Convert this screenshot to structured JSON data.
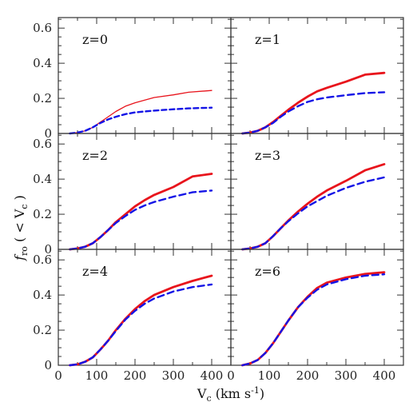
{
  "chart_data": {
    "type": "line",
    "grid": false,
    "layout": "3x2 panels, shared axes",
    "xlabel": "V_c (km s^-1)",
    "xlabel_parts": {
      "main": "V",
      "sub": "c",
      "rest": " (km s",
      "sup": "-1",
      "close": ")"
    },
    "ylabel_parts": {
      "main": "f",
      "sub": "ro",
      "mid": " ( < V",
      "sub2": "c",
      "close": " )"
    },
    "xlim": [
      0,
      450
    ],
    "ylim": [
      0,
      0.66
    ],
    "xticks": [
      0,
      100,
      200,
      300,
      400
    ],
    "yticks": [
      0,
      0.2,
      0.4,
      0.6
    ],
    "ytick_labels": [
      "0",
      "0.2",
      "0.4",
      "0.6"
    ],
    "colors": {
      "solid": "#e8141c",
      "dashed": "#1414e6",
      "frame": "#333333"
    },
    "panels": [
      {
        "label": "z=0",
        "series": [
          {
            "style": "solid-thin",
            "x": [
              30,
              50,
              70,
              90,
              110,
              130,
              150,
              175,
              200,
              250,
              300,
              340,
              400
            ],
            "y": [
              0,
              0.005,
              0.015,
              0.035,
              0.065,
              0.095,
              0.125,
              0.155,
              0.175,
              0.205,
              0.22,
              0.235,
              0.245
            ]
          },
          {
            "style": "dashed",
            "x": [
              30,
              50,
              70,
              90,
              110,
              130,
              150,
              175,
              200,
              250,
              300,
              340,
              400
            ],
            "y": [
              0,
              0.005,
              0.015,
              0.035,
              0.06,
              0.08,
              0.095,
              0.11,
              0.12,
              0.13,
              0.138,
              0.143,
              0.147
            ]
          }
        ]
      },
      {
        "label": "z=1",
        "series": [
          {
            "style": "solid",
            "x": [
              30,
              50,
              70,
              90,
              110,
              130,
              150,
              175,
              200,
              225,
              250,
              300,
              350,
              400
            ],
            "y": [
              0,
              0.005,
              0.015,
              0.035,
              0.065,
              0.1,
              0.135,
              0.175,
              0.21,
              0.24,
              0.26,
              0.295,
              0.335,
              0.345
            ]
          },
          {
            "style": "dashed",
            "x": [
              30,
              50,
              70,
              90,
              110,
              130,
              150,
              175,
              200,
              225,
              250,
              300,
              350,
              400
            ],
            "y": [
              0,
              0.005,
              0.015,
              0.035,
              0.06,
              0.095,
              0.125,
              0.155,
              0.18,
              0.195,
              0.205,
              0.218,
              0.23,
              0.235
            ]
          }
        ]
      },
      {
        "label": "z=2",
        "series": [
          {
            "style": "solid",
            "x": [
              30,
              50,
              70,
              90,
              110,
              130,
              150,
              175,
              200,
              225,
              250,
              300,
              350,
              400
            ],
            "y": [
              0,
              0.005,
              0.015,
              0.035,
              0.07,
              0.11,
              0.155,
              0.2,
              0.245,
              0.28,
              0.31,
              0.355,
              0.415,
              0.43
            ]
          },
          {
            "style": "dashed",
            "x": [
              30,
              50,
              70,
              90,
              110,
              130,
              150,
              175,
              200,
              225,
              250,
              300,
              350,
              400
            ],
            "y": [
              0,
              0.005,
              0.015,
              0.035,
              0.07,
              0.11,
              0.15,
              0.19,
              0.225,
              0.25,
              0.27,
              0.3,
              0.325,
              0.335
            ]
          }
        ]
      },
      {
        "label": "z=3",
        "series": [
          {
            "style": "solid",
            "x": [
              30,
              50,
              70,
              90,
              110,
              130,
              150,
              175,
              200,
              225,
              250,
              300,
              350,
              400
            ],
            "y": [
              0,
              0.005,
              0.015,
              0.035,
              0.075,
              0.12,
              0.165,
              0.215,
              0.26,
              0.3,
              0.335,
              0.39,
              0.45,
              0.485
            ]
          },
          {
            "style": "dashed",
            "x": [
              30,
              50,
              70,
              90,
              110,
              130,
              150,
              175,
              200,
              225,
              250,
              300,
              350,
              400
            ],
            "y": [
              0,
              0.005,
              0.015,
              0.035,
              0.075,
              0.12,
              0.16,
              0.205,
              0.245,
              0.275,
              0.305,
              0.35,
              0.385,
              0.41
            ]
          }
        ]
      },
      {
        "label": "z=4",
        "series": [
          {
            "style": "solid",
            "x": [
              30,
              50,
              70,
              90,
              110,
              130,
              150,
              175,
              200,
              225,
              250,
              300,
              350,
              400
            ],
            "y": [
              0,
              0.005,
              0.02,
              0.045,
              0.09,
              0.14,
              0.2,
              0.265,
              0.32,
              0.365,
              0.4,
              0.445,
              0.48,
              0.51
            ]
          },
          {
            "style": "dashed",
            "x": [
              30,
              50,
              70,
              90,
              110,
              130,
              150,
              175,
              200,
              225,
              250,
              300,
              350,
              400
            ],
            "y": [
              0,
              0.005,
              0.02,
              0.045,
              0.09,
              0.14,
              0.195,
              0.26,
              0.31,
              0.35,
              0.38,
              0.42,
              0.445,
              0.46
            ]
          }
        ]
      },
      {
        "label": "z=6",
        "series": [
          {
            "style": "solid",
            "x": [
              30,
              50,
              70,
              90,
              110,
              130,
              150,
              175,
              200,
              225,
              250,
              300,
              350,
              400
            ],
            "y": [
              0,
              0.01,
              0.03,
              0.07,
              0.125,
              0.19,
              0.255,
              0.33,
              0.39,
              0.44,
              0.47,
              0.5,
              0.52,
              0.53
            ]
          },
          {
            "style": "dashed",
            "x": [
              30,
              50,
              70,
              90,
              110,
              130,
              150,
              175,
              200,
              225,
              250,
              300,
              350,
              400
            ],
            "y": [
              0,
              0.01,
              0.03,
              0.07,
              0.125,
              0.19,
              0.255,
              0.33,
              0.385,
              0.43,
              0.46,
              0.49,
              0.51,
              0.518
            ]
          }
        ]
      }
    ]
  }
}
